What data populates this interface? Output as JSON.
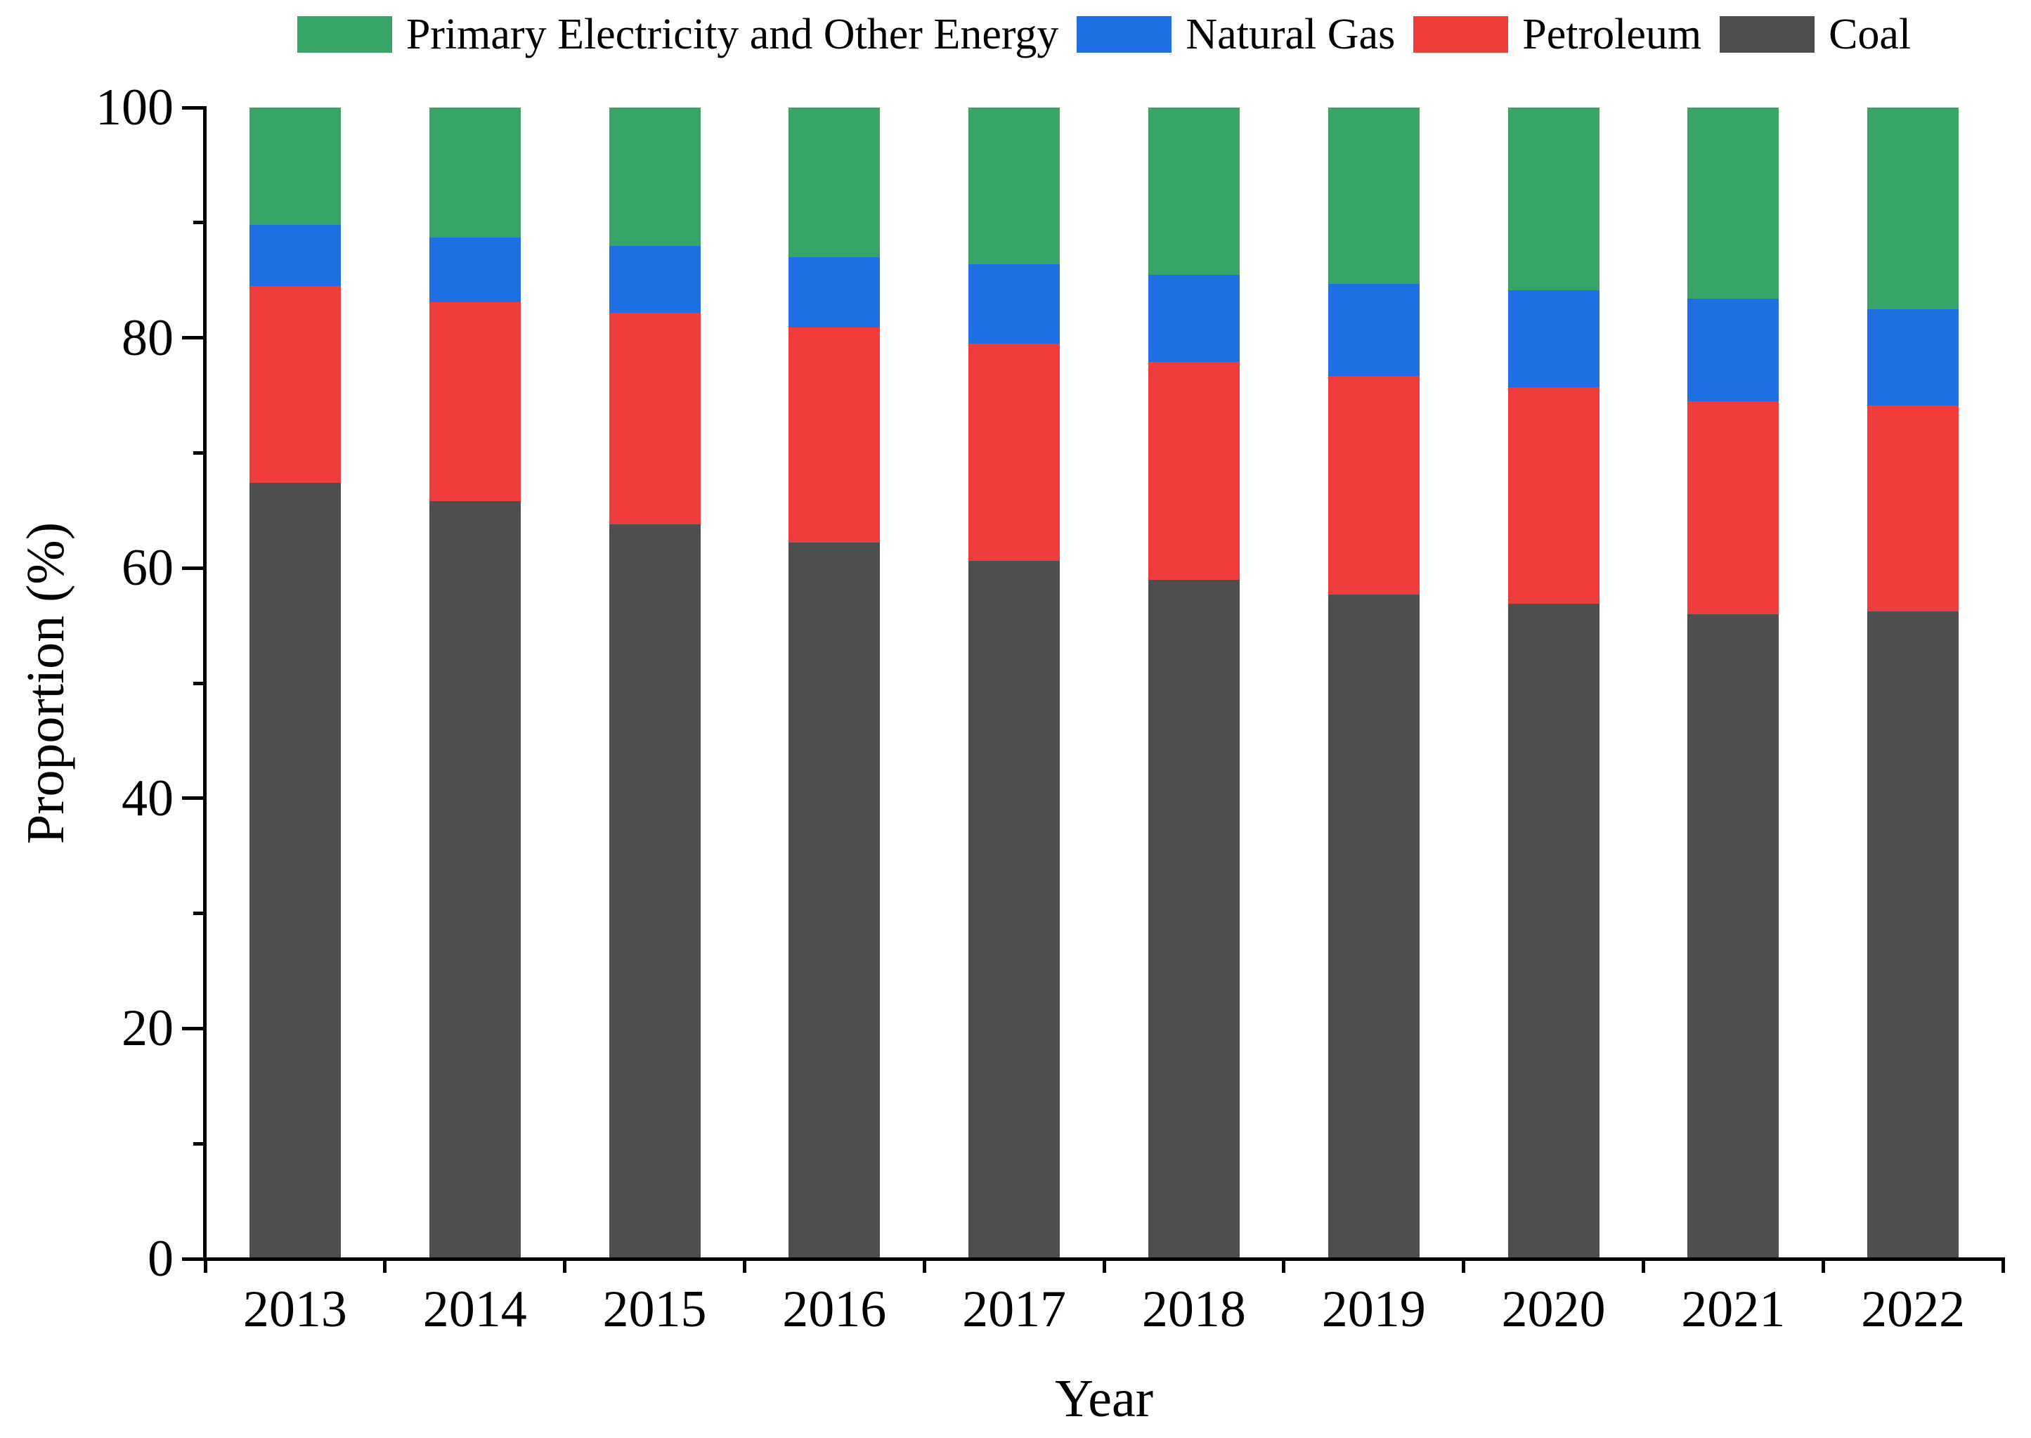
{
  "figure": {
    "background": "#ffffff",
    "text_color": "#000000",
    "axis_color": "#000000"
  },
  "legend": {
    "position": "top",
    "order": [
      "Primary Electricity and Other Energy",
      "Natural Gas",
      "Petroleum",
      "Coal"
    ]
  },
  "chart_data": {
    "type": "bar",
    "stacked": true,
    "orientation": "vertical",
    "categories": [
      "2013",
      "2014",
      "2015",
      "2016",
      "2017",
      "2018",
      "2019",
      "2020",
      "2021",
      "2022"
    ],
    "series": [
      {
        "name": "Coal",
        "color": "#4e4e4e",
        "values": [
          67.4,
          65.8,
          63.8,
          62.2,
          60.6,
          59.0,
          57.7,
          56.9,
          56.0,
          56.2
        ]
      },
      {
        "name": "Petroleum",
        "color": "#f13c3c",
        "values": [
          17.1,
          17.3,
          18.4,
          18.7,
          18.9,
          18.9,
          19.0,
          18.8,
          18.5,
          17.9
        ]
      },
      {
        "name": "Natural Gas",
        "color": "#1d6fe3",
        "values": [
          5.3,
          5.6,
          5.8,
          6.1,
          6.9,
          7.6,
          8.0,
          8.4,
          8.9,
          8.4
        ]
      },
      {
        "name": "Primary Electricity and Other Energy",
        "color": "#37a565",
        "values": [
          10.2,
          11.3,
          12.0,
          13.0,
          13.6,
          14.5,
          15.3,
          15.9,
          16.6,
          17.5
        ]
      }
    ],
    "xlabel": "Year",
    "ylabel": "Proportion (%)",
    "ylim": [
      0,
      100
    ],
    "yticks": [
      0,
      20,
      40,
      60,
      80,
      100
    ],
    "yticks_minor": [
      10,
      30,
      50,
      70,
      90
    ],
    "grid": false,
    "legend_position": "top"
  }
}
